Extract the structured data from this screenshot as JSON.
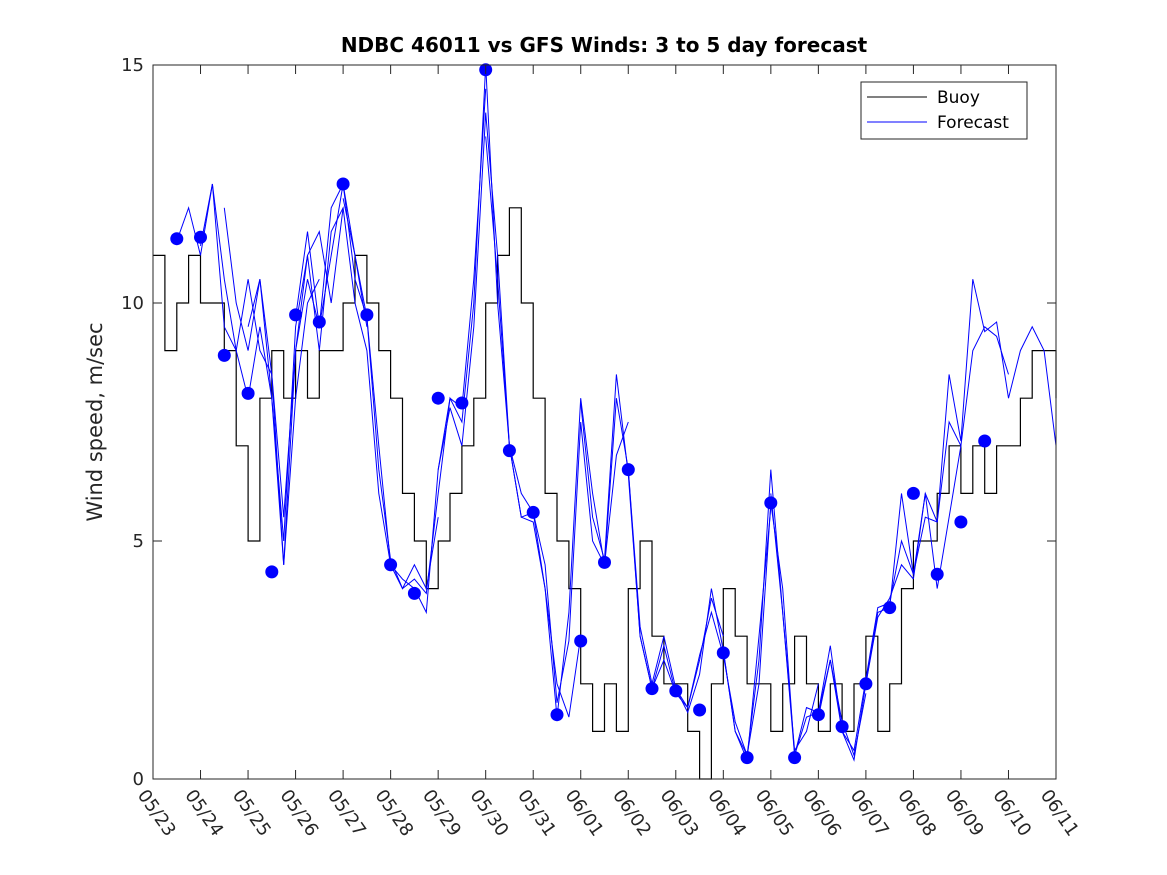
{
  "chart_data": {
    "type": "line",
    "title": "NDBC 46011 vs GFS Winds: 3 to 5 day forecast",
    "xlabel": "",
    "ylabel": "Wind speed, m/sec",
    "xlim": [
      0,
      19
    ],
    "ylim": [
      0,
      15
    ],
    "yticks": [
      0,
      5,
      10,
      15
    ],
    "xtick_labels": [
      "05/23",
      "05/24",
      "05/25",
      "05/26",
      "05/27",
      "05/28",
      "05/29",
      "05/30",
      "05/31",
      "06/01",
      "06/02",
      "06/03",
      "06/04",
      "06/05",
      "06/06",
      "06/07",
      "06/08",
      "06/09",
      "06/10",
      "06/11"
    ],
    "grid": false,
    "legend": {
      "placement": "top-right",
      "entries": [
        "Buoy",
        "Forecast"
      ]
    },
    "colors": {
      "buoy": "#000000",
      "forecast": "#0000ff",
      "marker": "#0000ff",
      "axis": "#262626"
    },
    "series": [
      {
        "name": "Buoy",
        "style": "step",
        "x": [
          0.0,
          0.25,
          0.5,
          0.75,
          1.0,
          1.25,
          1.5,
          1.75,
          2.0,
          2.25,
          2.5,
          2.75,
          3.0,
          3.25,
          3.5,
          3.75,
          4.0,
          4.25,
          4.5,
          4.75,
          5.0,
          5.25,
          5.5,
          5.75,
          6.0,
          6.25,
          6.5,
          6.75,
          7.0,
          7.25,
          7.5,
          7.75,
          8.0,
          8.25,
          8.5,
          8.75,
          9.0,
          9.25,
          9.5,
          9.75,
          10.0,
          10.25,
          10.5,
          10.75,
          11.0,
          11.25,
          11.5,
          11.75,
          12.0,
          12.25,
          12.5,
          12.75,
          13.0,
          13.25,
          13.5,
          13.75,
          14.0,
          14.25,
          14.5,
          14.75,
          15.0,
          15.25,
          15.5,
          15.75,
          16.0,
          16.25,
          16.5,
          16.75,
          17.0,
          17.25,
          17.5,
          17.75,
          18.0,
          18.25,
          18.5,
          18.75,
          19.0
        ],
        "y": [
          11,
          9,
          10,
          11,
          10,
          10,
          9,
          7,
          5,
          8,
          9,
          8,
          9,
          8,
          9,
          9,
          10,
          11,
          10,
          9,
          8,
          6,
          5,
          4,
          5,
          6,
          7,
          8,
          10,
          11,
          12,
          10,
          8,
          6,
          5,
          4,
          2,
          1,
          2,
          1,
          4,
          5,
          3,
          2,
          2,
          1,
          0,
          2,
          4,
          3,
          2,
          2,
          1,
          2,
          3,
          2,
          1,
          2,
          1,
          2,
          3,
          1,
          2,
          4,
          5,
          5,
          6,
          7,
          6,
          7,
          6,
          7,
          7,
          8,
          9,
          9,
          8
        ]
      },
      {
        "name": "Forecast",
        "style": "line",
        "runs": [
          {
            "x": [
              0.5,
              0.75,
              1.0,
              1.25,
              1.5,
              1.75,
              2.0,
              2.25,
              2.5,
              2.75,
              3.0,
              3.25,
              3.5
            ],
            "y": [
              11.3,
              12.0,
              11.0,
              12.5,
              10.5,
              9.0,
              8.0,
              9.5,
              8.0,
              4.5,
              8.0,
              10.0,
              10.5
            ]
          },
          {
            "x": [
              1.0,
              1.25,
              1.5,
              1.75,
              2.0,
              2.25,
              2.5,
              2.75,
              3.0,
              3.25,
              3.5,
              3.75,
              4.0
            ],
            "y": [
              11.2,
              12.5,
              9.5,
              9.0,
              10.5,
              9.0,
              8.5,
              5.5,
              9.0,
              11.0,
              11.5,
              10.0,
              12.0
            ]
          },
          {
            "x": [
              1.5,
              1.75,
              2.0,
              2.25,
              2.5,
              2.75,
              3.0,
              3.25,
              3.5,
              3.75,
              4.0,
              4.25,
              4.5
            ],
            "y": [
              12.0,
              10.0,
              9.0,
              10.5,
              8.5,
              4.5,
              9.0,
              10.5,
              9.5,
              11.0,
              12.5,
              11.0,
              9.5
            ]
          },
          {
            "x": [
              2.0,
              2.25,
              2.5,
              2.75,
              3.0,
              3.25,
              3.5,
              3.75,
              4.0,
              4.25,
              4.5,
              4.75,
              5.0
            ],
            "y": [
              9.5,
              10.5,
              8.0,
              5.0,
              9.5,
              11.0,
              9.0,
              11.5,
              12.0,
              10.0,
              9.0,
              6.0,
              4.5
            ]
          },
          {
            "x": [
              3.0,
              3.25,
              3.5,
              3.75,
              4.0,
              4.25,
              4.5,
              4.75,
              5.0,
              5.25,
              5.5,
              5.75,
              6.0
            ],
            "y": [
              9.7,
              11.5,
              9.5,
              12.0,
              12.5,
              10.5,
              9.7,
              7.0,
              4.5,
              4.0,
              4.5,
              4.0,
              5.5
            ]
          },
          {
            "x": [
              4.0,
              4.25,
              4.5,
              4.75,
              5.0,
              5.25,
              5.5,
              5.75,
              6.0,
              6.25,
              6.5,
              6.75,
              7.0
            ],
            "y": [
              12.2,
              11.0,
              9.7,
              6.5,
              4.6,
              4.0,
              4.2,
              3.9,
              6.0,
              8.0,
              7.8,
              10.5,
              14.5
            ]
          },
          {
            "x": [
              5.0,
              5.25,
              5.5,
              5.75,
              6.0,
              6.25,
              6.5,
              6.75,
              7.0,
              7.25,
              7.5,
              7.75,
              8.0
            ],
            "y": [
              4.5,
              4.2,
              4.0,
              3.5,
              6.5,
              8.0,
              7.5,
              10.0,
              15.0,
              10.0,
              7.0,
              5.5,
              5.6
            ]
          },
          {
            "x": [
              6.0,
              6.25,
              6.5,
              6.75,
              7.0,
              7.25,
              7.5,
              7.75,
              8.0,
              8.25,
              8.5,
              8.75,
              9.0
            ],
            "y": [
              6.5,
              7.8,
              7.0,
              9.5,
              14.0,
              11.0,
              7.0,
              5.5,
              5.4,
              4.0,
              2.0,
              1.3,
              3.0
            ]
          },
          {
            "x": [
              7.0,
              7.25,
              7.5,
              7.75,
              8.0,
              8.25,
              8.5,
              8.75,
              9.0,
              9.25,
              9.5,
              9.75,
              10.0
            ],
            "y": [
              13.5,
              10.5,
              7.0,
              6.0,
              5.6,
              4.5,
              1.6,
              2.9,
              7.5,
              5.0,
              4.5,
              6.8,
              7.5
            ]
          },
          {
            "x": [
              8.0,
              8.25,
              8.5,
              8.75,
              9.0,
              9.25,
              9.5,
              9.75,
              10.0,
              10.25,
              10.5,
              10.75,
              11.0
            ],
            "y": [
              5.6,
              4.0,
              1.3,
              3.5,
              8.0,
              6.0,
              4.5,
              8.0,
              6.5,
              3.0,
              1.9,
              2.5,
              1.8
            ]
          },
          {
            "x": [
              9.0,
              9.25,
              9.5,
              9.75,
              10.0,
              10.25,
              10.5,
              10.75,
              11.0,
              11.25,
              11.5,
              11.75,
              12.0
            ],
            "y": [
              7.9,
              5.5,
              4.6,
              8.5,
              6.4,
              3.0,
              1.9,
              2.8,
              1.8,
              1.5,
              2.5,
              3.8,
              3.0
            ]
          },
          {
            "x": [
              10.0,
              10.25,
              10.5,
              10.75,
              11.0,
              11.25,
              11.5,
              11.75,
              12.0,
              12.25,
              12.5,
              12.75,
              13.0
            ],
            "y": [
              6.5,
              3.2,
              2.0,
              3.0,
              1.9,
              1.4,
              2.2,
              4.0,
              2.7,
              1.0,
              0.4,
              3.0,
              5.7
            ]
          },
          {
            "x": [
              11.0,
              11.25,
              11.5,
              11.75,
              12.0,
              12.25,
              12.5,
              12.75,
              13.0,
              13.25,
              13.5,
              13.75,
              14.0
            ],
            "y": [
              1.9,
              1.5,
              2.6,
              3.5,
              2.6,
              1.2,
              0.5,
              2.5,
              6.5,
              3.5,
              0.6,
              1.0,
              2.0
            ]
          },
          {
            "x": [
              12.0,
              12.25,
              12.5,
              12.75,
              13.0,
              13.25,
              13.5,
              13.75,
              14.0,
              14.25,
              14.5,
              14.75,
              15.0
            ],
            "y": [
              2.7,
              1.0,
              0.5,
              2.0,
              5.8,
              4.0,
              0.5,
              1.3,
              1.4,
              2.5,
              1.2,
              0.5,
              1.8
            ]
          },
          {
            "x": [
              13.0,
              13.25,
              13.5,
              13.75,
              14.0,
              14.25,
              14.5,
              14.75,
              15.0,
              15.25,
              15.5,
              15.75,
              16.0
            ],
            "y": [
              6.0,
              3.5,
              0.5,
              1.5,
              1.4,
              2.8,
              1.0,
              0.4,
              2.0,
              3.4,
              3.8,
              4.5,
              4.2
            ]
          },
          {
            "x": [
              14.0,
              14.25,
              14.5,
              14.75,
              15.0,
              15.25,
              15.5,
              15.75,
              16.0,
              16.25,
              16.5,
              16.75,
              17.0
            ],
            "y": [
              1.3,
              2.5,
              1.0,
              0.6,
              2.1,
              3.6,
              3.7,
              5.0,
              4.3,
              6.0,
              4.0,
              5.5,
              7.0
            ]
          },
          {
            "x": [
              15.0,
              15.25,
              15.5,
              15.75,
              16.0,
              16.25,
              16.5,
              16.75,
              17.0,
              17.25,
              17.5,
              17.75,
              18.0
            ],
            "y": [
              2.0,
              3.5,
              3.6,
              6.0,
              4.3,
              5.5,
              5.4,
              7.5,
              7.0,
              9.0,
              9.5,
              9.3,
              8.5
            ]
          },
          {
            "x": [
              16.0,
              16.25,
              16.5,
              16.75,
              17.0,
              17.25,
              17.5,
              17.75,
              18.0,
              18.25,
              18.5,
              18.75,
              19.0
            ],
            "y": [
              4.2,
              6.0,
              5.4,
              8.5,
              7.1,
              10.5,
              9.4,
              9.6,
              8.0,
              9.0,
              9.5,
              9.0,
              7.0
            ]
          }
        ]
      },
      {
        "name": "Forecast markers",
        "style": "marker",
        "x": [
          0.5,
          1.0,
          1.5,
          2.0,
          2.5,
          3.0,
          3.5,
          4.0,
          4.5,
          5.0,
          5.5,
          6.0,
          6.5,
          7.0,
          7.5,
          8.0,
          8.5,
          9.0,
          9.5,
          10.0,
          10.5,
          11.0,
          11.5,
          12.0,
          12.5,
          13.0,
          13.5,
          14.0,
          14.5,
          15.0,
          15.5,
          16.0,
          16.5,
          17.0,
          17.5
        ],
        "y": [
          11.35,
          11.38,
          8.9,
          8.1,
          4.35,
          9.75,
          9.6,
          12.5,
          9.75,
          4.5,
          3.9,
          8.0,
          7.9,
          14.9,
          6.9,
          5.6,
          1.35,
          2.9,
          4.55,
          6.5,
          1.9,
          1.85,
          1.45,
          2.65,
          0.45,
          5.8,
          0.45,
          1.35,
          1.1,
          2.0,
          3.6,
          6.0,
          4.3,
          5.4,
          7.1
        ]
      }
    ]
  }
}
